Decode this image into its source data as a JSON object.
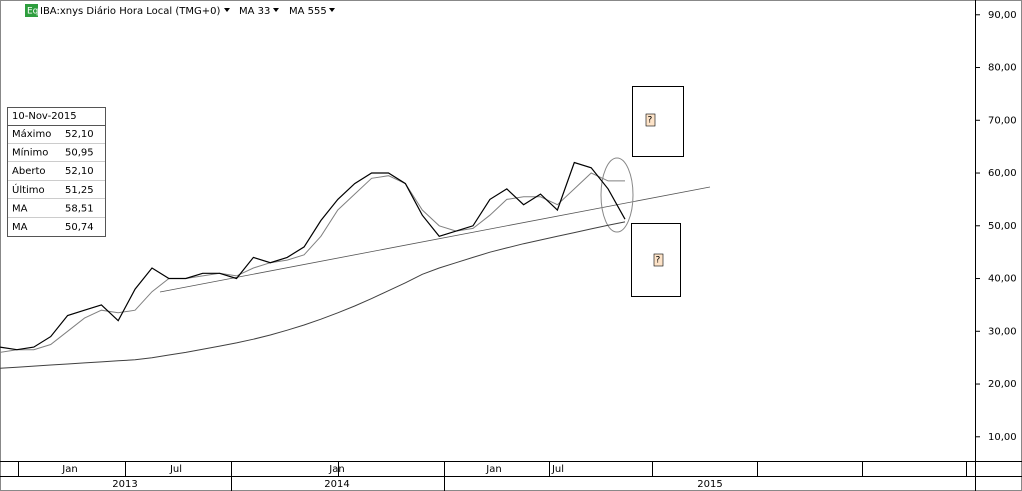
{
  "header": {
    "icon": "Eq",
    "title": "IBA:xnys Diário Hora Local (TMG+0)"
  },
  "info_box": {
    "date": "10-Nov-2015",
    "rows": [
      [
        "Máximo",
        "52,10"
      ],
      [
        "Mínimo",
        "50,95"
      ],
      [
        "Aberto",
        "52,10"
      ],
      [
        "Último",
        "51,25"
      ],
      [
        "MA",
        "58,51"
      ],
      [
        "MA",
        "50,74"
      ]
    ]
  },
  "annotations": {
    "box_up": "?",
    "box_down": "?"
  },
  "x_axis": {
    "months": [
      "Jan",
      "Jul",
      "Jan",
      "Jan",
      "Jul"
    ],
    "years": [
      "2013",
      "2014",
      "2015"
    ]
  },
  "chart_data": {
    "type": "line",
    "x": [
      "2012-10",
      "2012-11",
      "2012-12",
      "2013-01",
      "2013-02",
      "2013-03",
      "2013-04",
      "2013-05",
      "2013-06",
      "2013-07",
      "2013-08",
      "2013-09",
      "2013-10",
      "2013-11",
      "2013-12",
      "2014-01",
      "2014-02",
      "2014-03",
      "2014-04",
      "2014-05",
      "2014-06",
      "2014-07",
      "2014-08",
      "2014-09",
      "2014-10",
      "2014-11",
      "2014-12",
      "2015-01",
      "2015-02",
      "2015-03",
      "2015-04",
      "2015-05",
      "2015-06",
      "2015-07",
      "2015-08",
      "2015-09",
      "2015-10",
      "2015-11"
    ],
    "series": [
      {
        "color": "#000000",
        "values": [
          27,
          26.5,
          27,
          29,
          33,
          34,
          35,
          32,
          38,
          42,
          40,
          40,
          41,
          41,
          40,
          44,
          43,
          44,
          46,
          51,
          55,
          58,
          60,
          60,
          58,
          52,
          48,
          49,
          50,
          55,
          57,
          54,
          56,
          53,
          62,
          61,
          57,
          51.25
        ]
      },
      {
        "name": "MA 33",
        "color": "#808080",
        "values": [
          26,
          26.5,
          26.5,
          27.5,
          30,
          32.5,
          34,
          33.5,
          34,
          37.5,
          40,
          40,
          40.5,
          41,
          40.5,
          42,
          43,
          43.5,
          44.5,
          48,
          53,
          56,
          59,
          59.5,
          58,
          53,
          50,
          49,
          49.5,
          52,
          55,
          55.5,
          55.5,
          54,
          57,
          60,
          58.5,
          58.51
        ]
      },
      {
        "name": "MA 555",
        "color": "#404040",
        "values": [
          23,
          23.2,
          23.4,
          23.6,
          23.8,
          24,
          24.2,
          24.4,
          24.6,
          25,
          25.5,
          26,
          26.6,
          27.2,
          27.8,
          28.5,
          29.3,
          30.2,
          31.2,
          32.3,
          33.5,
          34.8,
          36.2,
          37.7,
          39.2,
          40.8,
          42,
          43,
          44,
          45,
          45.8,
          46.6,
          47.3,
          48,
          48.7,
          49.4,
          50.1,
          50.74
        ]
      }
    ],
    "ylim": [
      5.6,
      92.8
    ],
    "yticks": [
      {
        "value": 10,
        "label": "10,00"
      },
      {
        "value": 20,
        "label": "20,00"
      },
      {
        "value": 30,
        "label": "30,00"
      },
      {
        "value": 40,
        "label": "40,00"
      },
      {
        "value": 50,
        "label": "50,00"
      },
      {
        "value": 60,
        "label": "60,00"
      },
      {
        "value": 70,
        "label": "70,00"
      },
      {
        "value": 80,
        "label": "80,00"
      },
      {
        "value": 90,
        "label": "90,00"
      }
    ]
  }
}
